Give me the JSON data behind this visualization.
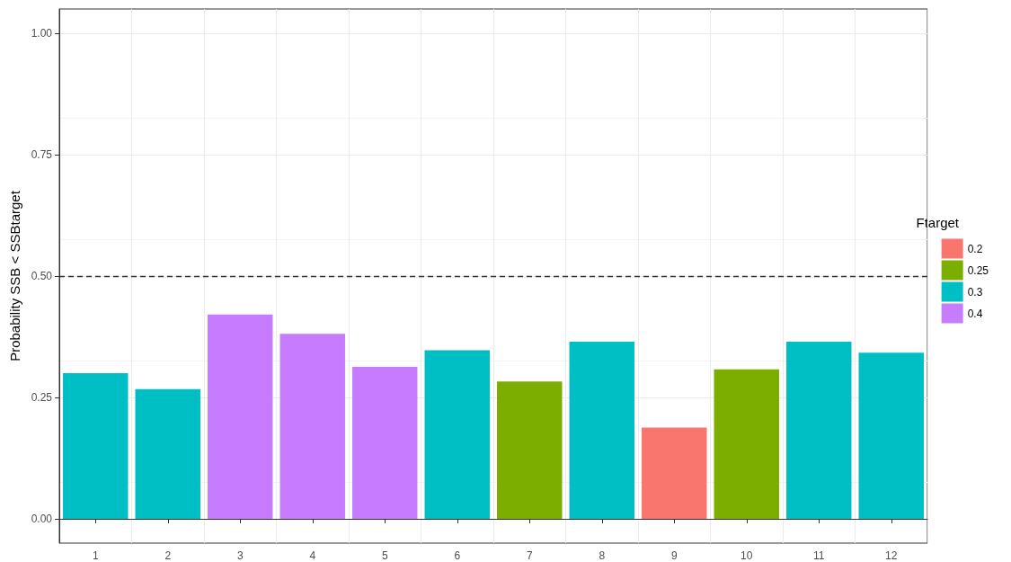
{
  "chart_data": {
    "type": "bar",
    "ylabel": "Probability SSB < SSBtarget",
    "legend_title": "Ftarget",
    "categories": [
      "1",
      "2",
      "3",
      "4",
      "5",
      "6",
      "7",
      "8",
      "9",
      "10",
      "11",
      "12"
    ],
    "series": [
      {
        "name": "0.2",
        "color": "#f8766d",
        "values": [
          null,
          null,
          null,
          null,
          null,
          null,
          null,
          null,
          0.188,
          null,
          null,
          null
        ]
      },
      {
        "name": "0.25",
        "color": "#7cae00",
        "values": [
          null,
          null,
          null,
          null,
          null,
          null,
          0.283,
          null,
          null,
          0.308,
          null,
          null
        ]
      },
      {
        "name": "0.3",
        "color": "#00bfc4",
        "values": [
          0.3,
          0.267,
          null,
          null,
          null,
          0.347,
          null,
          0.365,
          null,
          null,
          0.365,
          0.342
        ]
      },
      {
        "name": "0.4",
        "color": "#c77cff",
        "values": [
          null,
          null,
          0.421,
          0.381,
          0.313,
          null,
          null,
          null,
          null,
          null,
          null,
          null
        ]
      }
    ],
    "ylim": [
      -0.05,
      1.05
    ],
    "yticks": [
      {
        "value": 0,
        "label": "0.00"
      },
      {
        "value": 0.25,
        "label": "0.25"
      },
      {
        "value": 0.5,
        "label": "0.50"
      },
      {
        "value": 0.75,
        "label": "0.75"
      },
      {
        "value": 1,
        "label": "1.00"
      }
    ],
    "ref_lines": [
      {
        "axis": "y",
        "value": 0.5,
        "line_style": "dashed",
        "color": "#333333"
      }
    ],
    "grid": true,
    "legend": "right"
  }
}
